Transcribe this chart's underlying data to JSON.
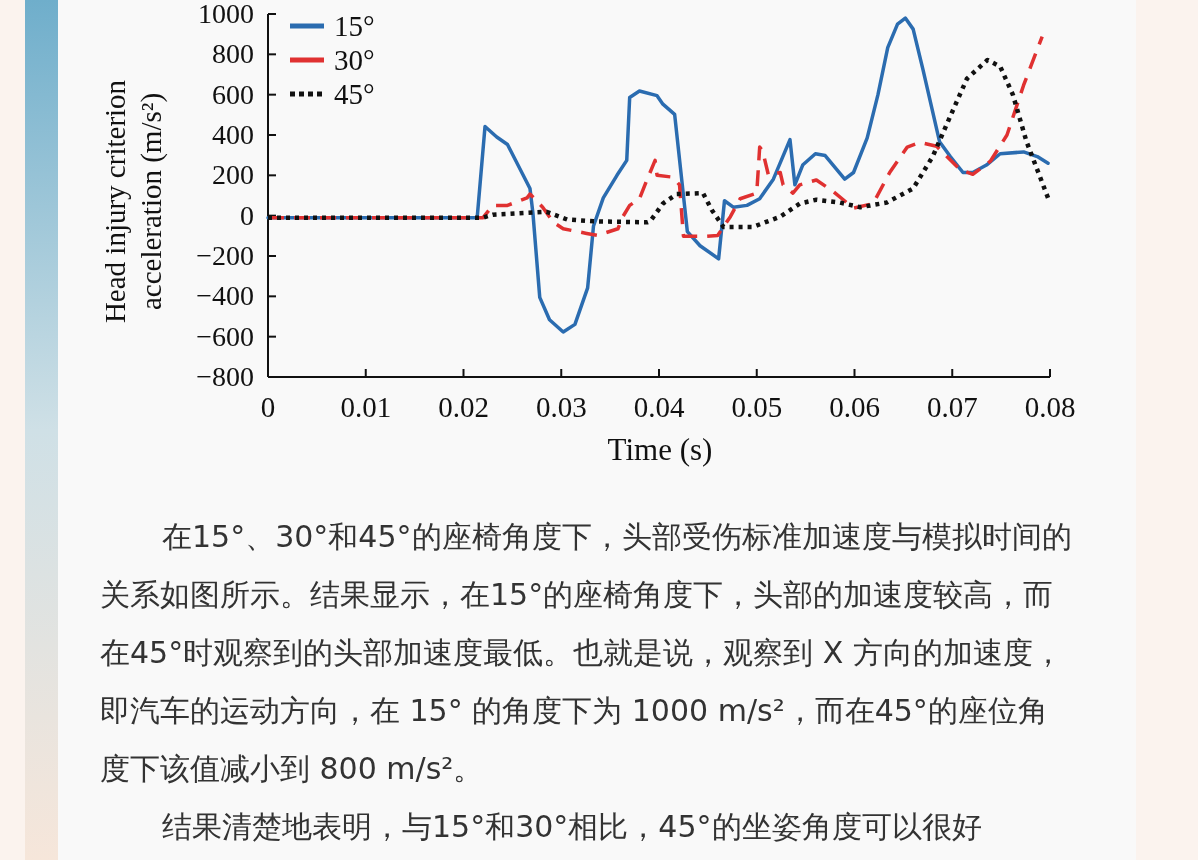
{
  "chart_data": {
    "type": "line",
    "xlabel": "Time (s)",
    "ylabel": "Head injury criterion acceleration (m/s²)",
    "xlim": [
      0,
      0.08
    ],
    "xticks": [
      0,
      0.01,
      0.02,
      0.03,
      0.04,
      0.05,
      0.06,
      0.07,
      0.08
    ],
    "ylim": [
      -800,
      1000
    ],
    "yticks": [
      {
        "value": -800,
        "label": "−800"
      },
      {
        "value": -600,
        "label": "−600"
      },
      {
        "value": -400,
        "label": "−400"
      },
      {
        "value": -200,
        "label": "−200"
      },
      0,
      200,
      400,
      600,
      800,
      1000
    ],
    "legend": "top left",
    "grid": false,
    "marker": "none",
    "series": [
      {
        "name": "15°",
        "color": "#2b6cb0",
        "line_style": "solid",
        "x": [
          0,
          0.0214,
          0.0222,
          0.0234,
          0.0245,
          0.0268,
          0.0271,
          0.0278,
          0.0288,
          0.0302,
          0.0314,
          0.0327,
          0.0333,
          0.0343,
          0.0357,
          0.0367,
          0.037,
          0.038,
          0.0398,
          0.0404,
          0.0416,
          0.0429,
          0.0442,
          0.0461,
          0.0467,
          0.0476,
          0.049,
          0.0503,
          0.0517,
          0.0534,
          0.0539,
          0.0547,
          0.056,
          0.057,
          0.059,
          0.0599,
          0.0613,
          0.0624,
          0.0634,
          0.0644,
          0.0652,
          0.066,
          0.067,
          0.0687,
          0.0698,
          0.0711,
          0.0721,
          0.0735,
          0.0749,
          0.0773,
          0.0787,
          0.0798
        ],
        "values": [
          -10,
          -10,
          442,
          390,
          353,
          135,
          14,
          -405,
          -516,
          -577,
          -539,
          -358,
          -51,
          88,
          200,
          274,
          586,
          618,
          595,
          553,
          502,
          -79,
          -149,
          -214,
          74,
          42,
          51,
          84,
          181,
          377,
          153,
          251,
          307,
          298,
          181,
          214,
          386,
          600,
          833,
          950,
          980,
          925,
          725,
          367,
          293,
          214,
          214,
          251,
          307,
          316,
          293,
          260
        ]
      },
      {
        "name": "30°",
        "color": "#e03131",
        "line_style": "dashed",
        "x": [
          0,
          0.022,
          0.023,
          0.0245,
          0.0265,
          0.0268,
          0.0281,
          0.0292,
          0.0302,
          0.0326,
          0.0337,
          0.0358,
          0.0363,
          0.037,
          0.038,
          0.0388,
          0.0396,
          0.0398,
          0.0414,
          0.0421,
          0.0425,
          0.0449,
          0.046,
          0.0473,
          0.0483,
          0.05,
          0.0503,
          0.0506,
          0.0512,
          0.0524,
          0.0527,
          0.0537,
          0.0544,
          0.0561,
          0.0578,
          0.0599,
          0.0619,
          0.0636,
          0.0654,
          0.0667,
          0.0684,
          0.0708,
          0.0721,
          0.0739,
          0.0756,
          0.0773,
          0.0792
        ],
        "values": [
          -10,
          -10,
          51,
          51,
          88,
          107,
          42,
          -33,
          -65,
          -88,
          -98,
          -65,
          -5,
          51,
          84,
          181,
          274,
          200,
          191,
          153,
          -102,
          -102,
          -98,
          -5,
          84,
          112,
          340,
          321,
          200,
          214,
          153,
          112,
          153,
          177,
          121,
          37,
          60,
          214,
          340,
          363,
          344,
          228,
          205,
          270,
          400,
          647,
          888
        ]
      },
      {
        "name": "45°",
        "color": "#111111",
        "line_style": "dotted",
        "x": [
          0,
          0.022,
          0.023,
          0.0285,
          0.0306,
          0.0333,
          0.0388,
          0.0391,
          0.0404,
          0.0418,
          0.0445,
          0.0454,
          0.0466,
          0.0496,
          0.0524,
          0.0544,
          0.0561,
          0.0585,
          0.0606,
          0.0633,
          0.066,
          0.068,
          0.0698,
          0.0715,
          0.0736,
          0.0749,
          0.0762,
          0.0776,
          0.0798
        ],
        "values": [
          -10,
          -10,
          5,
          19,
          -19,
          -28,
          -33,
          -28,
          60,
          107,
          112,
          28,
          -56,
          -56,
          -5,
          60,
          79,
          65,
          42,
          65,
          135,
          293,
          493,
          679,
          772,
          740,
          600,
          367,
          88
        ]
      }
    ],
    "annotations": [
      "在15°、30°和45°的座椅角度下，头部受伤标准加速度与模拟时间的关系如图所示。结果显示，在15°的座椅角度下，头部的加速度较高，而在45°时观察到的头部加速度最低。也就是说，观察到 X 方向的加速度，即汽车的运动方向，在 15° 的角度下为 1000 m/s²，而在45°的座位角度下该值减小到 800 m/s²。",
      "结果清楚地表明，与15°和30°相比，45°的坐姿角度可以很好"
    ]
  }
}
